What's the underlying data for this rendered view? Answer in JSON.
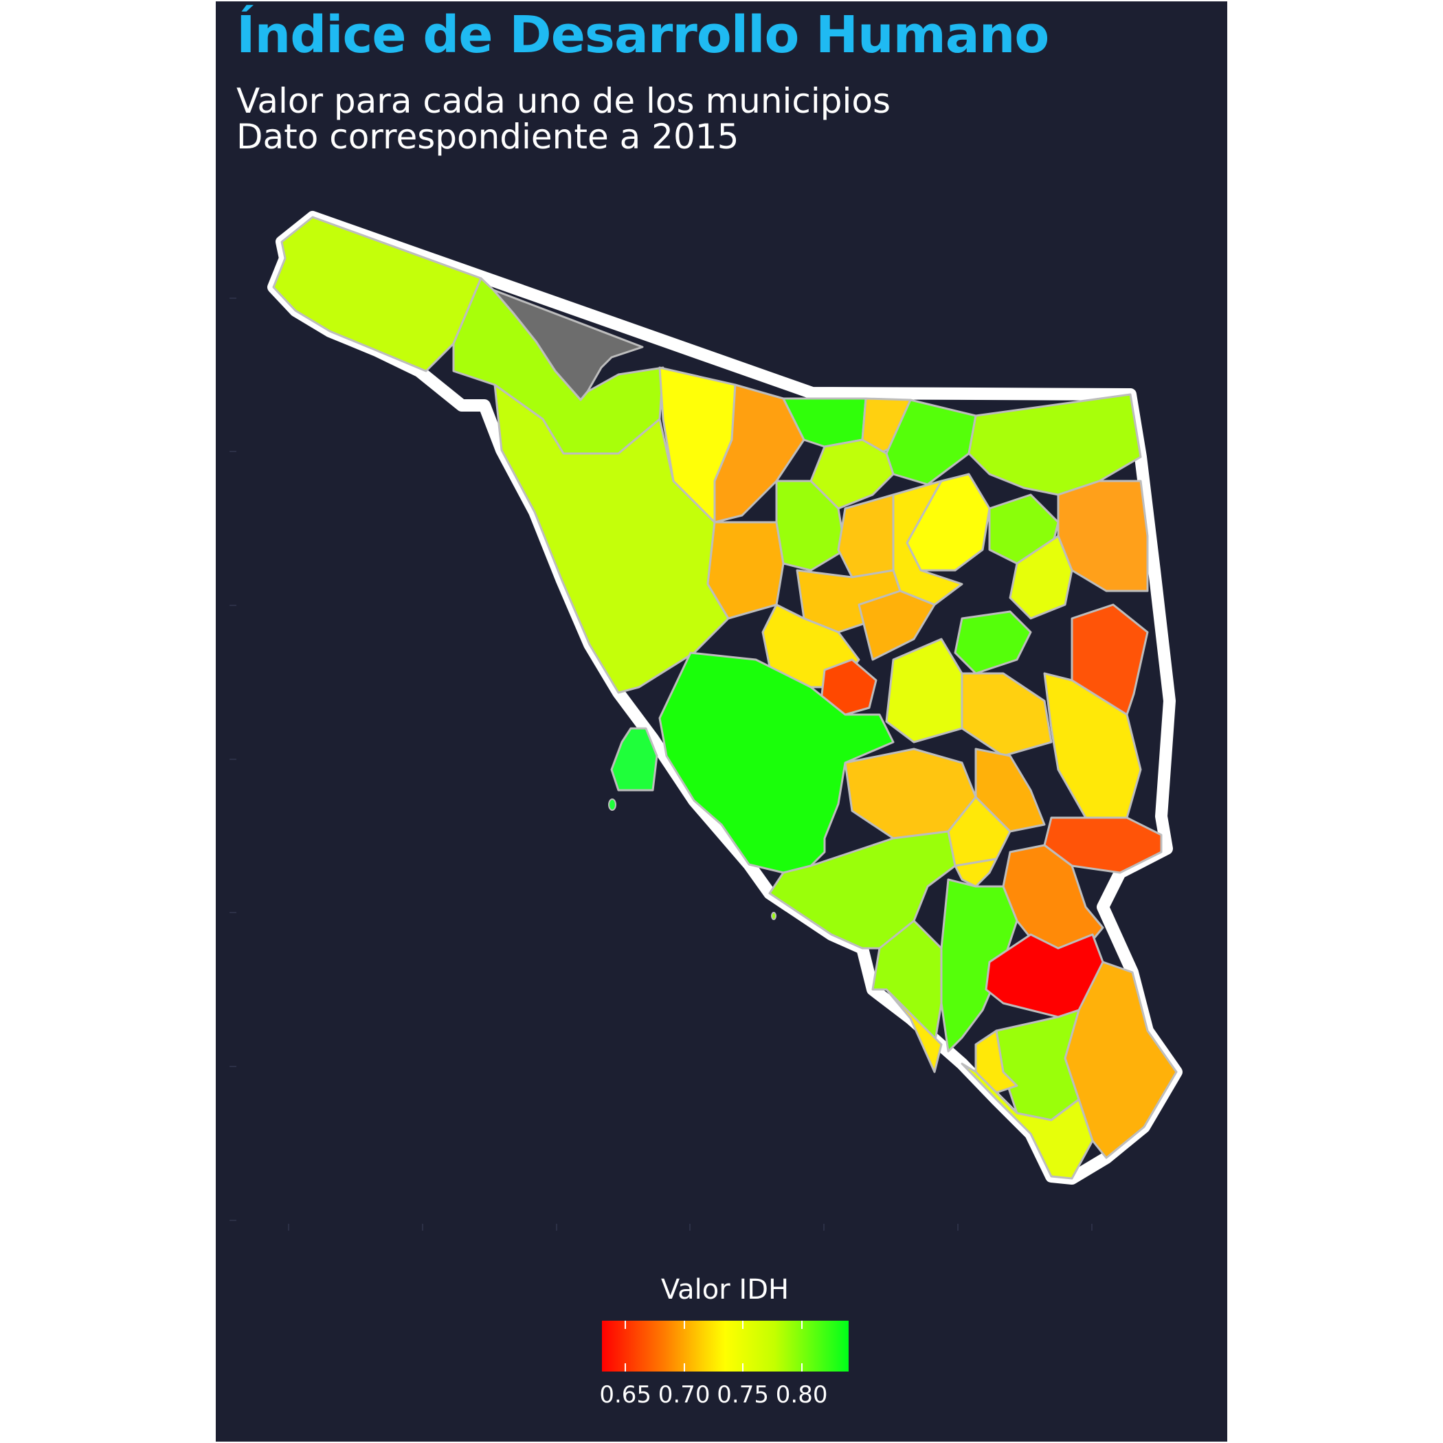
{
  "title": "Índice de Desarrollo Humano",
  "subtitle_line1": "Valor para cada uno de los municipios",
  "subtitle_line2": "Dato correspondiente a 2015",
  "legend": {
    "title": "Valor IDH",
    "ticks": [
      "0.65",
      "0.70",
      "0.75",
      "0.80"
    ],
    "range": [
      0.63,
      0.84
    ],
    "colors": {
      "low": "#ff0000",
      "mid": "#ffff00",
      "high": "#00ff1a"
    }
  },
  "colors": {
    "background": "#1c1f31",
    "title": "#1fbaf2",
    "text": "#ffffff",
    "no_data": "#6d6d6d",
    "state_outline": "#ffffff",
    "municipal_borders": "#bdbdbd"
  },
  "map": {
    "region": "Sonora, México",
    "no_data_region": "gris (sin dato)"
  }
}
